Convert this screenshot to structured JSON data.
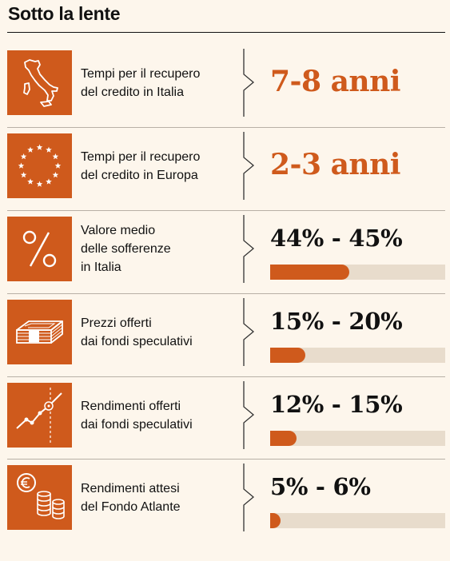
{
  "title": "Sotto la lente",
  "colors": {
    "accent": "#cf5a1c",
    "track": "#e8dccc",
    "background": "#fdf6ec"
  },
  "chart_data": {
    "type": "bar",
    "rows": [
      {
        "icon": "italy-map-icon",
        "label": "Tempi per il recupero\ndel credito in Italia",
        "value_text": "7-8 anni",
        "range": [
          7,
          8
        ],
        "unit": "anni"
      },
      {
        "icon": "eu-stars-icon",
        "label": "Tempi per il recupero\ndel credito in Europa",
        "value_text": "2-3 anni",
        "range": [
          2,
          3
        ],
        "unit": "anni"
      },
      {
        "icon": "percent-icon",
        "label": "Valore medio\ndelle sofferenze\nin Italia",
        "value_text": "44% - 45%",
        "range": [
          44,
          45
        ],
        "unit": "%"
      },
      {
        "icon": "banknotes-icon",
        "label": "Prezzi offerti\ndai fondi speculativi",
        "value_text": "15% - 20%",
        "range": [
          15,
          20
        ],
        "unit": "%"
      },
      {
        "icon": "trend-chart-icon",
        "label": "Rendimenti offerti\ndai fondi speculativi",
        "value_text": "12% - 15%",
        "range": [
          12,
          15
        ],
        "unit": "%"
      },
      {
        "icon": "euro-coins-icon",
        "label": "Rendimenti attesi\ndel Fondo Atlante",
        "value_text": "5% - 6%",
        "range": [
          5,
          6
        ],
        "unit": "%"
      }
    ]
  }
}
